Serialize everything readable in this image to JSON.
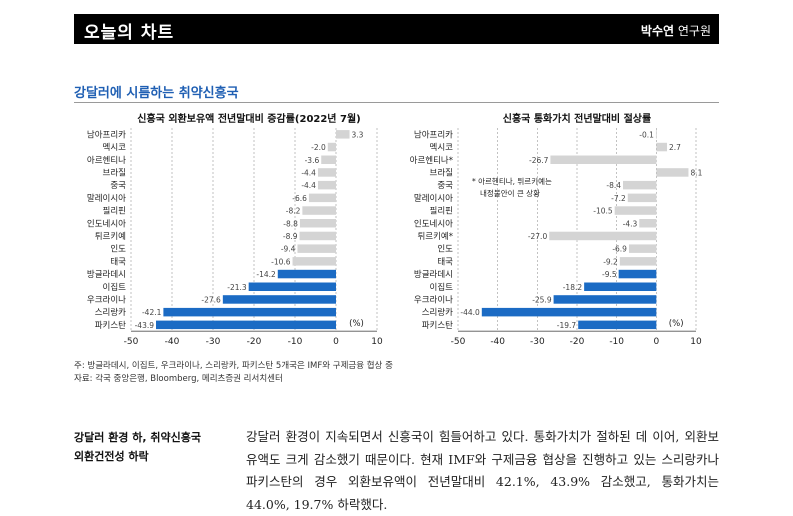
{
  "header": {
    "title": "오늘의 차트",
    "author_name": "박수연",
    "author_role": "연구원"
  },
  "section_title": "강달러에 시름하는 취약신흥국",
  "chart_data": [
    {
      "type": "bar",
      "orientation": "horizontal",
      "title": "신흥국 외환보유액 전년말대비 증감률(2022년 7월)",
      "unit_label": "(%)",
      "categories": [
        "남아프리카",
        "멕시코",
        "아르헨티나",
        "브라질",
        "중국",
        "말레이시아",
        "필리핀",
        "인도네시아",
        "튀르키예",
        "인도",
        "태국",
        "방글라데시",
        "이집트",
        "우크라이나",
        "스리랑카",
        "파키스탄"
      ],
      "values": [
        3.3,
        -2.0,
        -3.6,
        -4.4,
        -4.4,
        -6.6,
        -8.2,
        -8.8,
        -8.9,
        -9.4,
        -10.6,
        -14.2,
        -21.3,
        -27.6,
        -42.1,
        -43.9
      ],
      "value_labels": [
        "3.3",
        "-2.0",
        "-3.6",
        "-4.4",
        "-4.4",
        "-6.6",
        "-8.2",
        "-8.8",
        "-8.9",
        "-9.4",
        "-10.6",
        "-14.2",
        "-21.3",
        "-27.6",
        "-42.1",
        "-43.9"
      ],
      "highlighted": [
        false,
        false,
        false,
        false,
        false,
        false,
        false,
        false,
        false,
        false,
        false,
        true,
        true,
        true,
        true,
        true
      ],
      "xlim": [
        -50,
        10
      ],
      "xticks": [
        -50,
        -40,
        -30,
        -20,
        -10,
        0,
        10
      ],
      "grid": true
    },
    {
      "type": "bar",
      "orientation": "horizontal",
      "title": "신흥국 통화가치 전년말대비 절상률",
      "unit_label": "(%)",
      "annotation": [
        "* 아르헨티나, 튀르키예는",
        "내정불안이 큰 상황"
      ],
      "categories": [
        "남아프리카",
        "멕시코",
        "아르헨티나*",
        "브라질",
        "중국",
        "말레이시아",
        "필리핀",
        "인도네시아",
        "튀르키예*",
        "인도",
        "태국",
        "방글라데시",
        "이집트",
        "우크라이나",
        "스리랑카",
        "파키스탄"
      ],
      "values": [
        -0.1,
        2.7,
        -26.7,
        8.1,
        -8.4,
        -7.2,
        -10.5,
        -4.3,
        -27.0,
        -6.9,
        -9.2,
        -9.5,
        -18.2,
        -25.9,
        -44.0,
        -19.7
      ],
      "value_labels": [
        "-0.1",
        "2.7",
        "-26.7",
        "8.1",
        "-8.4",
        "-7.2",
        "-10.5",
        "-4.3",
        "-27.0",
        "-6.9",
        "-9.2",
        "-9.5",
        "-18.2",
        "-25.9",
        "-44.0",
        "-19.7"
      ],
      "highlighted": [
        false,
        false,
        false,
        false,
        false,
        false,
        false,
        false,
        false,
        false,
        false,
        true,
        true,
        true,
        true,
        true
      ],
      "xlim": [
        -50,
        10
      ],
      "xticks": [
        -50,
        -40,
        -30,
        -20,
        -10,
        0,
        10
      ],
      "grid": true
    }
  ],
  "colors": {
    "highlight": "#1b6bc4",
    "normal": "#d4d4d4",
    "grid": "#9a9a9a",
    "accent": "#1f5fb3"
  },
  "notes": {
    "footnote": "주: 방글라데시, 이집트, 우크라이나, 스리랑카, 파키스탄 5개국은 IMF와 구제금융 협상 중",
    "source": "자료: 각국 중앙은행, Bloomberg, 메리츠증권 리서치센터"
  },
  "side_heading": [
    "강달러 환경 하, 취약신흥국",
    "외환건전성 하락"
  ],
  "body_text": "강달러 환경이 지속되면서 신흥국이 힘들어하고 있다. 통화가치가 절하된 데 이어, 외환보유액도 크게 감소했기 때문이다. 현재 IMF와 구제금융 협상을 진행하고 있는 스리랑카나 파키스탄의 경우 외환보유액이 전년말대비 42.1%, 43.9% 감소했고, 통화가치는 44.0%, 19.7% 하락했다."
}
